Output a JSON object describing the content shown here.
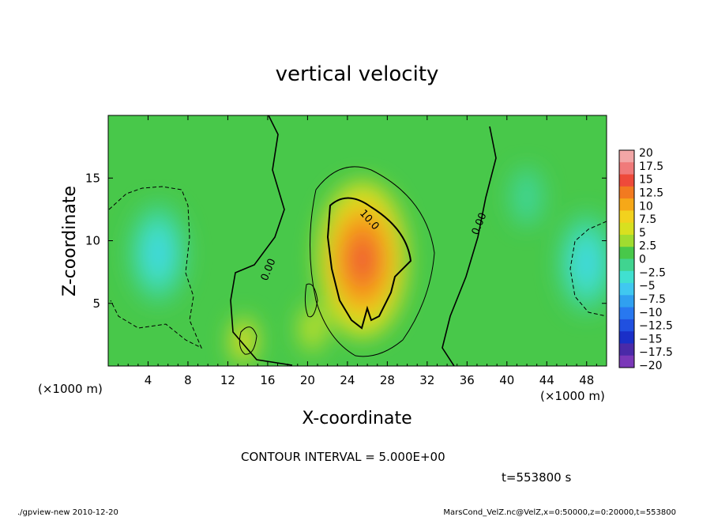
{
  "chart_data": {
    "type": "heatmap",
    "title": "vertical velocity",
    "xlabel": "X-coordinate",
    "ylabel": "Z-coordinate",
    "x_unit": "(×1000 m)",
    "y_unit": "(×1000 m)",
    "xlim": [
      0,
      50
    ],
    "ylim": [
      0,
      20
    ],
    "x_ticks": [
      "4",
      "8",
      "12",
      "16",
      "20",
      "24",
      "28",
      "32",
      "36",
      "40",
      "44",
      "48"
    ],
    "y_ticks": [
      "5",
      "10",
      "15"
    ],
    "colorbar": {
      "labels": [
        "20",
        "17.5",
        "15",
        "12.5",
        "10",
        "7.5",
        "5",
        "2.5",
        "0",
        "−2.5",
        "−5",
        "−7.5",
        "−10",
        "−12.5",
        "−15",
        "−17.5",
        "−20"
      ],
      "colors": [
        "#f2a6a6",
        "#f07a7a",
        "#ee4a3a",
        "#f27a20",
        "#f6a818",
        "#f2d21e",
        "#d8e020",
        "#a0dc30",
        "#48c84a",
        "#40d490",
        "#40e0d0",
        "#40c8f0",
        "#30a0f0",
        "#2878f0",
        "#2050e0",
        "#1a2fc8",
        "#4a2aa8",
        "#7a38b8"
      ]
    },
    "contour_labels": [
      "0.00",
      "10.0",
      "0.00"
    ],
    "contour_interval": "CONTOUR INTERVAL = 5.000E+00",
    "time_label": "t=553800 s",
    "footer_left": "./gpview-new   2010-12-20",
    "footer_right": "MarsCond_VelZ.nc@VelZ,x=0:50000,z=0:20000,t=553800",
    "features": [
      {
        "kind": "updraft",
        "x": 25.5,
        "z": 8.5,
        "peak": 14
      },
      {
        "kind": "updraft",
        "x": 13.6,
        "z": 2.0,
        "peak": 7
      },
      {
        "kind": "updraft",
        "x": 20.5,
        "z": 3.0,
        "peak": 5
      },
      {
        "kind": "downdraft",
        "x": 5.0,
        "z": 9.0,
        "peak": -8
      },
      {
        "kind": "downdraft",
        "x": 48.0,
        "z": 8.2,
        "peak": -7
      },
      {
        "kind": "downdraft",
        "x": 42.0,
        "z": 13.5,
        "peak": -3
      }
    ]
  }
}
